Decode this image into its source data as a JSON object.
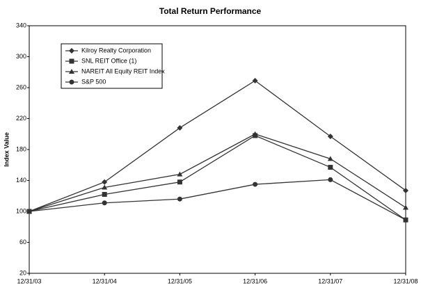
{
  "chart_data": {
    "type": "line",
    "title": "Total Return Performance",
    "y_label": "Index Value",
    "categories": [
      "12/31/03",
      "12/31/04",
      "12/31/05",
      "12/31/06",
      "12/31/07",
      "12/31/08"
    ],
    "series": [
      {
        "name": "Kilroy Realty Corporation",
        "color": "#333333",
        "marker": "diamond",
        "values": [
          100,
          138,
          208,
          269,
          197,
          127
        ]
      },
      {
        "name": "SNL REIT Office (1)",
        "color": "#333333",
        "marker": "square",
        "values": [
          100,
          122,
          138,
          198,
          157,
          89
        ]
      },
      {
        "name": "NAREIT All Equity REIT Index",
        "color": "#333333",
        "marker": "triangle",
        "values": [
          100,
          131,
          148,
          200,
          168,
          105
        ]
      },
      {
        "name": "S&P 500",
        "color": "#333333",
        "marker": "circle",
        "values": [
          100,
          111,
          116,
          135,
          141,
          89
        ]
      }
    ],
    "ylim": [
      20,
      340
    ],
    "yticks": [
      20,
      60,
      100,
      140,
      180,
      220,
      260,
      300,
      340
    ],
    "grid": false,
    "legend": "upper left"
  }
}
